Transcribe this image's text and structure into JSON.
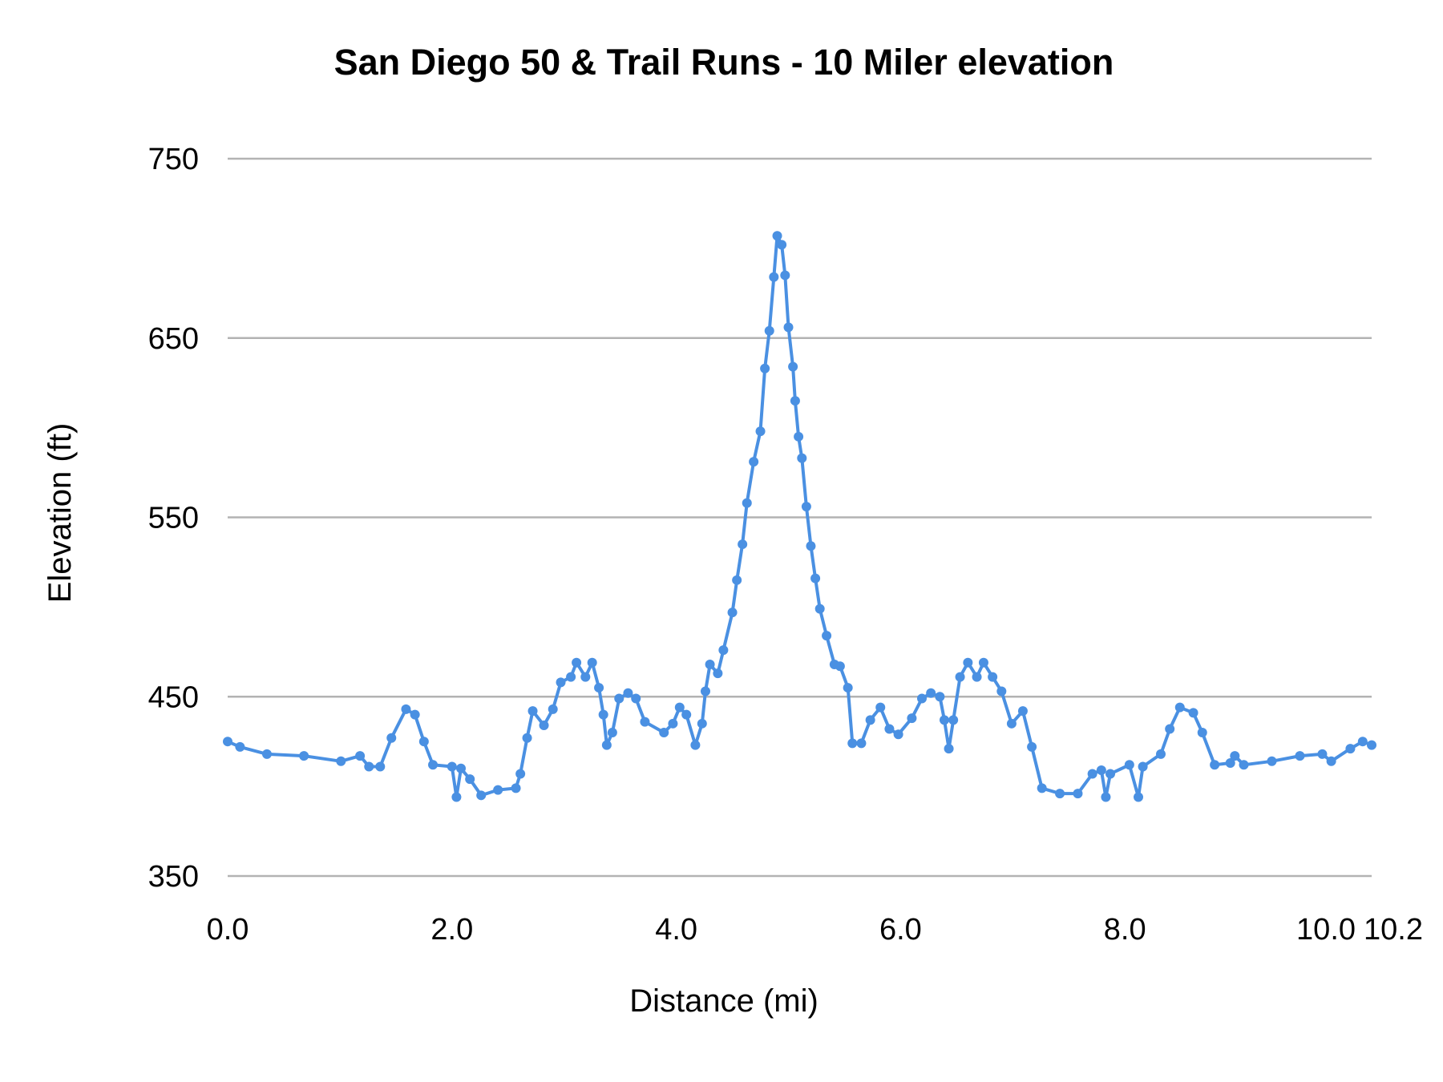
{
  "chart_data": {
    "type": "line",
    "title": "San Diego 50 & Trail Runs - 10 Miler elevation",
    "xlabel": "Distance (mi)",
    "ylabel": "Elevation (ft)",
    "xlim": [
      0,
      10.2
    ],
    "ylim": [
      350,
      750
    ],
    "xticks": [
      "0.0",
      "2.0",
      "4.0",
      "6.0",
      "8.0",
      "10.0",
      "10.2"
    ],
    "yticks": [
      "350",
      "450",
      "550",
      "650",
      "750"
    ],
    "grid": "horizontal",
    "markers": true,
    "color": "#4a90e2",
    "x": [
      0,
      0.11,
      0.35,
      0.68,
      1.01,
      1.18,
      1.26,
      1.36,
      1.46,
      1.59,
      1.67,
      1.75,
      1.83,
      2.0,
      2.04,
      2.08,
      2.16,
      2.26,
      2.41,
      2.57,
      2.61,
      2.67,
      2.72,
      2.82,
      2.9,
      2.97,
      3.06,
      3.11,
      3.19,
      3.25,
      3.31,
      3.35,
      3.38,
      3.43,
      3.49,
      3.57,
      3.64,
      3.72,
      3.89,
      3.97,
      4.03,
      4.09,
      4.17,
      4.23,
      4.26,
      4.3,
      4.37,
      4.42,
      4.5,
      4.54,
      4.59,
      4.63,
      4.69,
      4.75,
      4.79,
      4.83,
      4.87,
      4.9,
      4.94,
      4.97,
      5.0,
      5.04,
      5.06,
      5.09,
      5.12,
      5.16,
      5.2,
      5.24,
      5.28,
      5.34,
      5.41,
      5.46,
      5.53,
      5.57,
      5.65,
      5.73,
      5.82,
      5.9,
      5.98,
      6.1,
      6.19,
      6.27,
      6.35,
      6.39,
      6.43,
      6.47,
      6.53,
      6.6,
      6.68,
      6.74,
      6.82,
      6.9,
      6.99,
      7.09,
      7.17,
      7.26,
      7.42,
      7.58,
      7.71,
      7.79,
      7.83,
      7.87,
      8.04,
      8.12,
      8.16,
      8.32,
      8.4,
      8.49,
      8.61,
      8.69,
      8.8,
      8.94,
      8.98,
      9.06,
      9.31,
      9.56,
      9.76,
      9.84,
      10.01,
      10.12,
      10.2
    ],
    "y": [
      425,
      422,
      418,
      417,
      414,
      417,
      411,
      411,
      427,
      443,
      440,
      425,
      412,
      411,
      394,
      410,
      404,
      395,
      398,
      399,
      407,
      427,
      442,
      434,
      443,
      458,
      461,
      469,
      461,
      469,
      455,
      440,
      423,
      430,
      449,
      452,
      449,
      436,
      430,
      435,
      444,
      440,
      423,
      435,
      453,
      468,
      463,
      476,
      497,
      515,
      535,
      558,
      581,
      598,
      633,
      654,
      684,
      707,
      702,
      685,
      656,
      634,
      615,
      595,
      583,
      556,
      534,
      516,
      499,
      484,
      468,
      467,
      455,
      424,
      424,
      437,
      444,
      432,
      429,
      438,
      449,
      452,
      450,
      437,
      421,
      437,
      461,
      469,
      461,
      469,
      461,
      453,
      435,
      442,
      422,
      399,
      396,
      396,
      407,
      409,
      394,
      407,
      412,
      394,
      411,
      418,
      432,
      444,
      441,
      430,
      412,
      413,
      417,
      412,
      414,
      417,
      418,
      414,
      421,
      425,
      423
    ]
  }
}
